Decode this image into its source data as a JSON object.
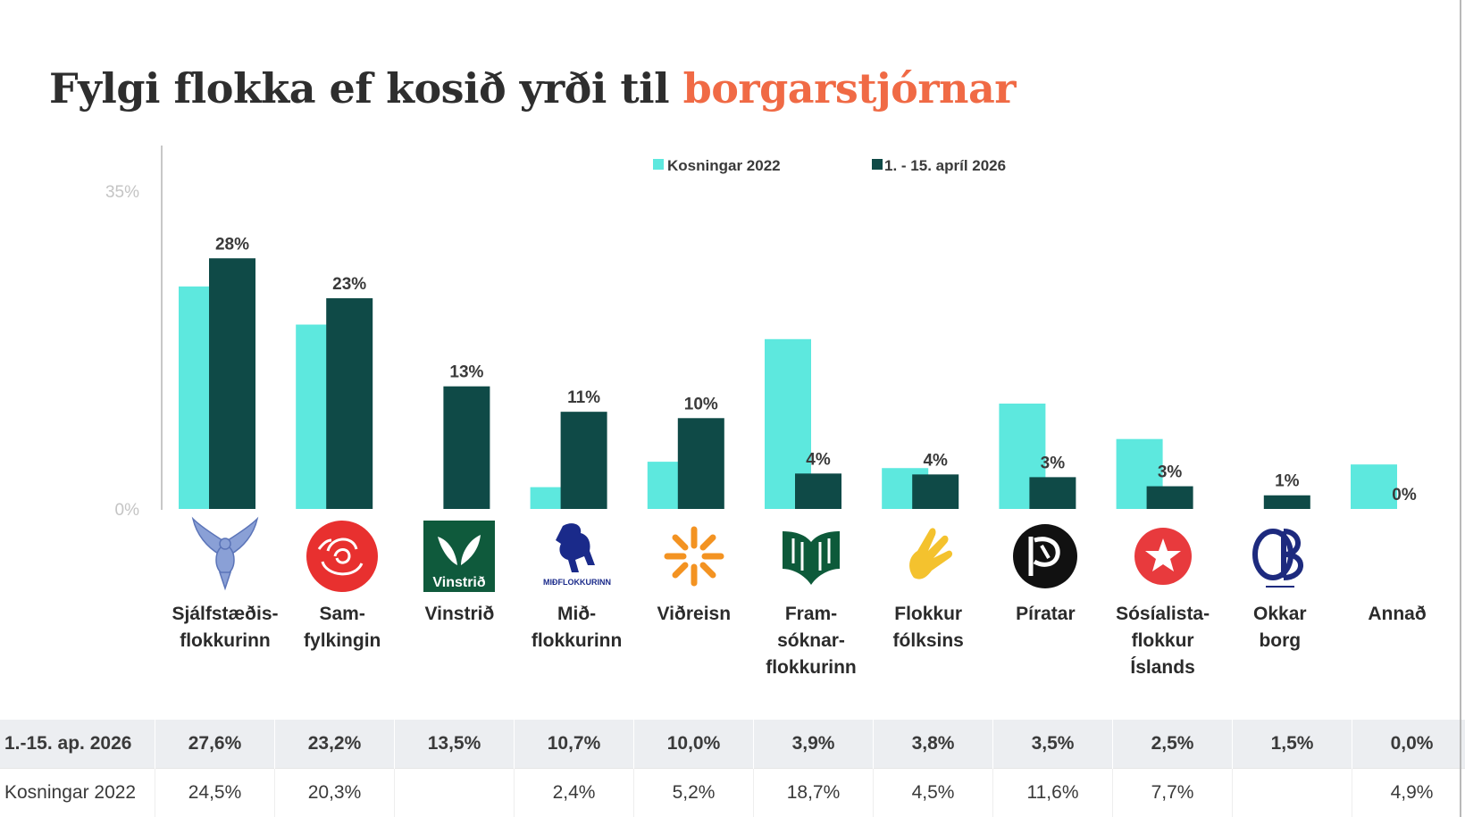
{
  "title": {
    "part1": "Fylgi flokka ef kosið yrði til ",
    "part2": "borgarstjórnar"
  },
  "colors": {
    "series_2022": "#5de8de",
    "series_2026": "#0f4a47",
    "title_accent": "#f06a45"
  },
  "chart_data": {
    "type": "bar",
    "categories": [
      "Sjálfstæðis-\nflokkurinn",
      "Sam-\nfylkingin",
      "Vinstrið",
      "Mið-\nflokkurinn",
      "Viðreisn",
      "Fram-\nsóknar-\nflokkurinn",
      "Flokkur\nfólksins",
      "Píratar",
      "Sósíalista-\nflokkur\nÍslands",
      "Okkar\nborg",
      "Annað"
    ],
    "series": [
      {
        "name": "Kosningar 2022",
        "values": [
          24.5,
          20.3,
          null,
          2.4,
          5.2,
          18.7,
          4.5,
          11.6,
          7.7,
          null,
          4.9
        ]
      },
      {
        "name": "1. - 15. apríl 2026",
        "values": [
          27.6,
          23.2,
          13.5,
          10.7,
          10.0,
          3.9,
          3.8,
          3.5,
          2.5,
          1.5,
          0.0
        ]
      }
    ],
    "data_labels": [
      "28%",
      "23%",
      "13%",
      "11%",
      "10%",
      "4%",
      "4%",
      "3%",
      "3%",
      "1%",
      "0%"
    ],
    "yticks": [
      "35%",
      "0%"
    ],
    "ylim": [
      0,
      35
    ],
    "legend": "top-center",
    "grid": false
  },
  "logos": [
    "eagle-logo",
    "rose-logo",
    "vinstrid-logo",
    "horse-logo",
    "sun-logo",
    "book-logo",
    "hand-logo",
    "pirate-flag-logo",
    "star-logo",
    "ob-monogram-logo",
    ""
  ],
  "logo_text": {
    "vinstrid": "Vinstrið",
    "midflokkurinn": "MIÐFLOKKURINN"
  },
  "table": {
    "row1_label": "1.-15. ap. 2026",
    "row1": [
      "27,6%",
      "23,2%",
      "13,5%",
      "10,7%",
      "10,0%",
      "3,9%",
      "3,8%",
      "3,5%",
      "2,5%",
      "1,5%",
      "0,0%"
    ],
    "row2_label": "Kosningar 2022",
    "row2": [
      "24,5%",
      "20,3%",
      "",
      "2,4%",
      "5,2%",
      "18,7%",
      "4,5%",
      "11,6%",
      "7,7%",
      "",
      "4,9%"
    ]
  }
}
